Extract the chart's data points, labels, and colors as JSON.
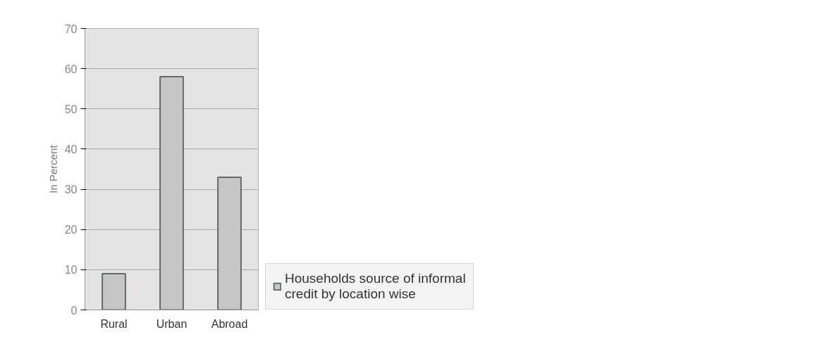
{
  "chart_data": {
    "type": "bar",
    "ylabel": "In Percent",
    "categories": [
      "Rural",
      "Urban",
      "Abroad"
    ],
    "series": [
      {
        "name": "Households source of informal credit by location wise",
        "color": "#c6c6c6",
        "values": [
          9,
          58,
          33
        ]
      }
    ],
    "ylim": [
      0,
      70
    ],
    "yticks": [
      0,
      10,
      20,
      30,
      40,
      50,
      60,
      70
    ],
    "grid": "y",
    "legend": "right"
  }
}
